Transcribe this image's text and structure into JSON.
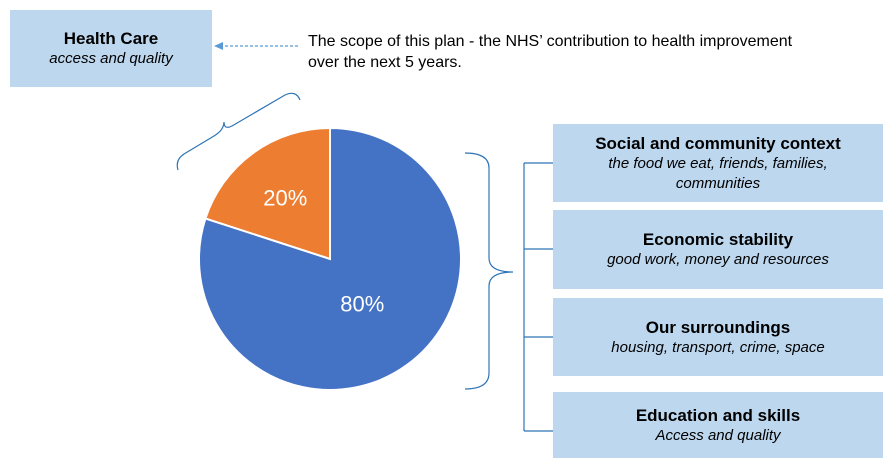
{
  "health_care": {
    "title": "Health Care",
    "subtitle": "access and quality"
  },
  "scope_note": "The scope of this plan -  the NHS’ contribution to health improvement\nover the next 5 years.",
  "factors": [
    {
      "title": "Social and community context",
      "subtitle": "the food we eat, friends, families, communities"
    },
    {
      "title": "Economic stability",
      "subtitle": "good work, money and resources"
    },
    {
      "title": "Our surroundings",
      "subtitle": "housing, transport, crime, space"
    },
    {
      "title": "Education and skills",
      "subtitle": "Access and quality"
    }
  ],
  "chart_data": {
    "type": "pie",
    "slices": [
      {
        "label": "20%",
        "value": 20,
        "color": "#ed7d31"
      },
      {
        "label": "80%",
        "value": 80,
        "color": "#4472c4"
      }
    ]
  },
  "colors": {
    "box_fill": "#bdd7ee",
    "connector": "#2e75b6",
    "arrow": "#5b9bd5"
  }
}
